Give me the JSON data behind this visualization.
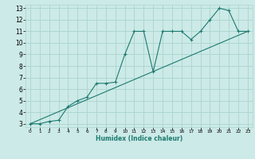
{
  "xlabel": "Humidex (Indice chaleur)",
  "background_color": "#cceae7",
  "grid_color": "#aad4d0",
  "line_color": "#1e7a70",
  "xlim": [
    -0.5,
    23.5
  ],
  "ylim": [
    2.7,
    13.3
  ],
  "x_ticks": [
    0,
    1,
    2,
    3,
    4,
    5,
    6,
    7,
    8,
    9,
    10,
    11,
    12,
    13,
    14,
    15,
    16,
    17,
    18,
    19,
    20,
    21,
    22,
    23
  ],
  "y_ticks": [
    3,
    4,
    5,
    6,
    7,
    8,
    9,
    10,
    11,
    12,
    13
  ],
  "line1_x": [
    0,
    1,
    2,
    3,
    4,
    5,
    6,
    7,
    8,
    9,
    10,
    11,
    12,
    13,
    14,
    15,
    16,
    17,
    18,
    19,
    20,
    21,
    22,
    23
  ],
  "line1_y": [
    3.0,
    3.0,
    3.2,
    3.3,
    4.5,
    5.0,
    5.3,
    6.5,
    6.5,
    6.6,
    9.0,
    11.0,
    11.0,
    7.5,
    11.0,
    11.0,
    11.0,
    10.3,
    11.0,
    12.0,
    13.0,
    12.8,
    11.0,
    11.0
  ],
  "line2_x": [
    0,
    23
  ],
  "line2_y": [
    3.0,
    11.0
  ],
  "marker": "+"
}
